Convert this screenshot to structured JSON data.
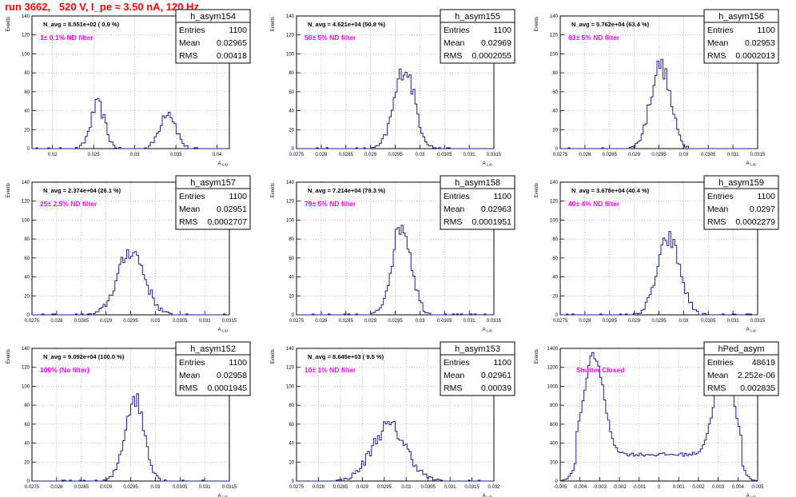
{
  "page_title": "run 3662,   520 V, I_pe ≈ 3.50 nA, 120 Hz",
  "colors": {
    "histogram": "#1e1e96",
    "filter_label": "#ff00ff",
    "title": "#ff0000",
    "grid": "#9a9a9a",
    "axis": "#000000"
  },
  "chart_data": [
    {
      "type": "bar",
      "name": "h_asym154",
      "xlabel": "A_LID",
      "ylabel": "Events",
      "stats": {
        "entries_label": "Entries",
        "entries": "1100",
        "mean_label": "Mean",
        "mean": "0.02965",
        "rms_label": "RMS",
        "rms": "0.00418"
      },
      "navg_text": "N_avg = 8.551e+02 ( 0.9 %)",
      "filter_text": "1± 0.1% ND filter",
      "xlim": [
        0.0175,
        0.0415
      ],
      "ylim": [
        0,
        140
      ],
      "x_ticks": [
        "0.02",
        "0.025",
        "0.03",
        "0.035",
        "0.04"
      ],
      "x_tick_values": [
        0.02,
        0.025,
        0.03,
        0.035,
        0.04
      ],
      "y_ticks": [
        "0",
        "20",
        "40",
        "60",
        "80",
        "100",
        "120",
        "140"
      ],
      "y_tick_values": [
        0,
        20,
        40,
        60,
        80,
        100,
        120,
        140
      ],
      "peaks": [
        {
          "mu": 0.0255,
          "sigma": 0.00085,
          "amp": 46
        },
        {
          "mu": 0.034,
          "sigma": 0.00095,
          "amp": 40
        }
      ]
    },
    {
      "type": "bar",
      "name": "h_asym155",
      "xlabel": "A_LID",
      "ylabel": "Events",
      "stats": {
        "entries_label": "Entries",
        "entries": "1100",
        "mean_label": "Mean",
        "mean": "0.02969",
        "rms_label": "RMS",
        "rms": "0.0002055"
      },
      "navg_text": "N_avg = 4.621e+04 (50.8 %)",
      "filter_text": "50± 5% ND filter",
      "xlim": [
        0.0275,
        0.0315
      ],
      "ylim": [
        0,
        140
      ],
      "x_ticks": [
        "0.0275",
        "0.028",
        "0.0285",
        "0.029",
        "0.0295",
        "0.03",
        "0.0305",
        "0.031",
        "0.0315"
      ],
      "x_tick_values": [
        0.0275,
        0.028,
        0.0285,
        0.029,
        0.0295,
        0.03,
        0.0305,
        0.031,
        0.0315
      ],
      "y_ticks": [
        "0",
        "20",
        "40",
        "60",
        "80",
        "100",
        "120",
        "140"
      ],
      "y_tick_values": [
        0,
        20,
        40,
        60,
        80,
        100,
        120,
        140
      ],
      "peaks": [
        {
          "mu": 0.02969,
          "sigma": 0.0002055,
          "amp": 85
        }
      ]
    },
    {
      "type": "bar",
      "name": "h_asym156",
      "xlabel": "A_LID",
      "ylabel": "Events",
      "stats": {
        "entries_label": "Entries",
        "entries": "1100",
        "mean_label": "Mean",
        "mean": "0.02953",
        "rms_label": "RMS",
        "rms": "0.0002013"
      },
      "navg_text": "N_avg = 5.762e+04 (63.4 %)",
      "filter_text": "63± 5% ND filter",
      "xlim": [
        0.0275,
        0.0315
      ],
      "ylim": [
        0,
        140
      ],
      "x_ticks": [
        "0.0275",
        "0.028",
        "0.0285",
        "0.029",
        "0.0295",
        "0.03",
        "0.0305",
        "0.031",
        "0.0315"
      ],
      "x_tick_values": [
        0.0275,
        0.028,
        0.0285,
        0.029,
        0.0295,
        0.03,
        0.0305,
        0.031,
        0.0315
      ],
      "y_ticks": [
        "0",
        "20",
        "40",
        "60",
        "80",
        "100",
        "120",
        "140"
      ],
      "y_tick_values": [
        0,
        20,
        40,
        60,
        80,
        100,
        120,
        140
      ],
      "peaks": [
        {
          "mu": 0.02953,
          "sigma": 0.0002013,
          "amp": 88
        }
      ]
    },
    {
      "type": "bar",
      "name": "h_asym157",
      "xlabel": "A_LID",
      "ylabel": "Events",
      "stats": {
        "entries_label": "Entries",
        "entries": "1100",
        "mean_label": "Mean",
        "mean": "0.02951",
        "rms_label": "RMS",
        "rms": "0.0002707"
      },
      "navg_text": "N_avg = 2.374e+04 (26.1 %)",
      "filter_text": "25± 2.5% ND filter",
      "xlim": [
        0.0275,
        0.0315
      ],
      "ylim": [
        0,
        140
      ],
      "x_ticks": [
        "0.0275",
        "0.028",
        "0.0285",
        "0.029",
        "0.0295",
        "0.03",
        "0.0305",
        "0.031",
        "0.0315"
      ],
      "x_tick_values": [
        0.0275,
        0.028,
        0.0285,
        0.029,
        0.0295,
        0.03,
        0.0305,
        0.031,
        0.0315
      ],
      "y_ticks": [
        "0",
        "20",
        "40",
        "60",
        "80",
        "100",
        "120",
        "140"
      ],
      "y_tick_values": [
        0,
        20,
        40,
        60,
        80,
        100,
        120,
        140
      ],
      "peaks": [
        {
          "mu": 0.02951,
          "sigma": 0.0002707,
          "amp": 68
        }
      ]
    },
    {
      "type": "bar",
      "name": "h_asym158",
      "xlabel": "A_LID",
      "ylabel": "Events",
      "stats": {
        "entries_label": "Entries",
        "entries": "1100",
        "mean_label": "Mean",
        "mean": "0.02963",
        "rms_label": "RMS",
        "rms": "0.0001951"
      },
      "navg_text": "N_avg = 7.214e+04 (79.3 %)",
      "filter_text": "79± 5% ND filter",
      "xlim": [
        0.0275,
        0.0315
      ],
      "ylim": [
        0,
        140
      ],
      "x_ticks": [
        "0.0275",
        "0.028",
        "0.0285",
        "0.029",
        "0.0295",
        "0.03",
        "0.0305",
        "0.031",
        "0.0315"
      ],
      "x_tick_values": [
        0.0275,
        0.028,
        0.0285,
        0.029,
        0.0295,
        0.03,
        0.0305,
        0.031,
        0.0315
      ],
      "y_ticks": [
        "0",
        "20",
        "40",
        "60",
        "80",
        "100",
        "120",
        "140"
      ],
      "y_tick_values": [
        0,
        20,
        40,
        60,
        80,
        100,
        120,
        140
      ],
      "peaks": [
        {
          "mu": 0.02963,
          "sigma": 0.0001951,
          "amp": 95
        }
      ]
    },
    {
      "type": "bar",
      "name": "h_asym159",
      "xlabel": "A_LID",
      "ylabel": "Events",
      "stats": {
        "entries_label": "Entries",
        "entries": "1100",
        "mean_label": "Mean",
        "mean": "0.0297",
        "rms_label": "RMS",
        "rms": "0.0002279"
      },
      "navg_text": "N_avg = 3.678e+04 (40.4 %)",
      "filter_text": "40± 4% ND filter",
      "xlim": [
        0.0275,
        0.0315
      ],
      "ylim": [
        0,
        140
      ],
      "x_ticks": [
        "0.0275",
        "0.028",
        "0.0285",
        "0.029",
        "0.0295",
        "0.03",
        "0.0305",
        "0.031",
        "0.0315"
      ],
      "x_tick_values": [
        0.0275,
        0.028,
        0.0285,
        0.029,
        0.0295,
        0.03,
        0.0305,
        0.031,
        0.0315
      ],
      "y_ticks": [
        "0",
        "20",
        "40",
        "60",
        "80",
        "100",
        "120",
        "140"
      ],
      "y_tick_values": [
        0,
        20,
        40,
        60,
        80,
        100,
        120,
        140
      ],
      "peaks": [
        {
          "mu": 0.0297,
          "sigma": 0.0002279,
          "amp": 80
        }
      ]
    },
    {
      "type": "bar",
      "name": "h_asym152",
      "xlabel": "A_LID",
      "ylabel": "Events",
      "stats": {
        "entries_label": "Entries",
        "entries": "1100",
        "mean_label": "Mean",
        "mean": "0.02958",
        "rms_label": "RMS",
        "rms": "0.0001945"
      },
      "navg_text": "N_avg = 9.092e+04 (100.0 %)",
      "filter_text": "100% (No filter)",
      "xlim": [
        0.0275,
        0.0315
      ],
      "ylim": [
        0,
        140
      ],
      "x_ticks": [
        "0.0275",
        "0.028",
        "0.0285",
        "0.029",
        "0.0295",
        "0.03",
        "0.0305",
        "0.031",
        "0.0315"
      ],
      "x_tick_values": [
        0.0275,
        0.028,
        0.0285,
        0.029,
        0.0295,
        0.03,
        0.0305,
        0.031,
        0.0315
      ],
      "y_ticks": [
        "0",
        "20",
        "40",
        "60",
        "80",
        "100",
        "120",
        "140"
      ],
      "y_tick_values": [
        0,
        20,
        40,
        60,
        80,
        100,
        120,
        140
      ],
      "peaks": [
        {
          "mu": 0.02958,
          "sigma": 0.0001945,
          "amp": 88
        }
      ]
    },
    {
      "type": "bar",
      "name": "h_asym153",
      "xlabel": "A_LID",
      "ylabel": "Events",
      "stats": {
        "entries_label": "Entries",
        "entries": "1100",
        "mean_label": "Mean",
        "mean": "0.02961",
        "rms_label": "RMS",
        "rms": "0.00039"
      },
      "navg_text": "N_avg = 8.645e+03 ( 9.5 %)",
      "filter_text": "10± 1% ND filter",
      "xlim": [
        0.0275,
        0.032
      ],
      "ylim": [
        0,
        140
      ],
      "x_ticks": [
        "0.0275",
        "0.028",
        "0.0285",
        "0.029",
        "0.0295",
        "0.03",
        "0.0305",
        "0.031",
        "0.0315",
        "0.032"
      ],
      "x_tick_values": [
        0.0275,
        0.028,
        0.0285,
        0.029,
        0.0295,
        0.03,
        0.0305,
        0.031,
        0.0315,
        0.032
      ],
      "y_ticks": [
        "0",
        "20",
        "40",
        "60",
        "80",
        "100",
        "120",
        "140"
      ],
      "y_tick_values": [
        0,
        20,
        40,
        60,
        80,
        100,
        120,
        140
      ],
      "peaks": [
        {
          "mu": 0.02961,
          "sigma": 0.00039,
          "amp": 58
        }
      ]
    },
    {
      "type": "bar",
      "name": "hPed_asym",
      "xlabel": "A_LID",
      "ylabel": "Events",
      "stats": {
        "entries_label": "Entries",
        "entries": "48619",
        "mean_label": "Mean",
        "mean": "2.252e-06",
        "rms_label": "RMS",
        "rms": "0.002835"
      },
      "navg_text": "",
      "filter_text": "Shutter Closed",
      "xlim": [
        -0.005,
        0.005
      ],
      "ylim": [
        0,
        1400
      ],
      "x_ticks": [
        "-0.005",
        "-0.004",
        "-0.003",
        "-0.002",
        "-0.001",
        "0",
        "0.001",
        "0.002",
        "0.003",
        "0.004",
        "0.005"
      ],
      "x_tick_values": [
        -0.005,
        -0.004,
        -0.003,
        -0.002,
        -0.001,
        0,
        0.001,
        0.002,
        0.003,
        0.004,
        0.005
      ],
      "y_ticks": [
        "0",
        "200",
        "400",
        "600",
        "800",
        "1000",
        "1200",
        "1400"
      ],
      "y_tick_values": [
        0,
        200,
        400,
        600,
        800,
        1000,
        1200,
        1400
      ],
      "peaks": [
        {
          "mu": -0.0033,
          "sigma": 0.0005,
          "amp": 1050
        },
        {
          "mu": 0.0033,
          "sigma": 0.0005,
          "amp": 950
        }
      ],
      "baseline": {
        "from": -0.0042,
        "to": 0.0042,
        "level": 280
      }
    }
  ]
}
